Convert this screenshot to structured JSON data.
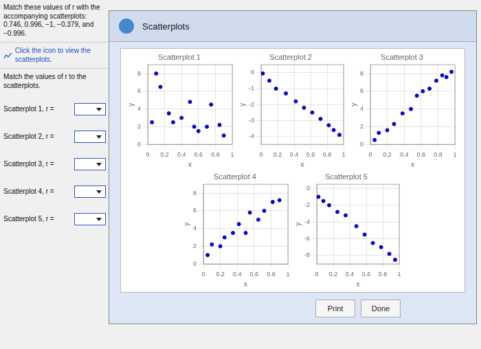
{
  "annotations": [
    "Match these values of r with the accompanying scatterplots: 0.746, 0.996, −1, −0.379, and −0.996.",
    "Click the icon to view the scatterplots.",
    "Match the values of r to the scatterplots.",
    "Scatterplot 1, r =",
    "Scatterplot 2, r =",
    "Scatterplot 3, r =",
    "Scatterplot 4, r =",
    "Scatterplot 5, r =",
    "Scatterplots",
    "Print",
    "Done"
  ],
  "chart_data": [
    {
      "type": "scatter",
      "title": "Scatterplot 1",
      "x_label": "x",
      "y_label": "y",
      "color": "#0000cc",
      "grid": true,
      "x": [
        0.05,
        0.1,
        0.15,
        0.25,
        0.3,
        0.4,
        0.5,
        0.55,
        0.6,
        0.7,
        0.75,
        0.85,
        0.9
      ],
      "values": [
        2.5,
        8.0,
        6.5,
        3.5,
        2.5,
        3.0,
        4.8,
        2.0,
        1.5,
        2.0,
        4.5,
        2.2,
        1.0
      ],
      "xlim": [
        0,
        1
      ],
      "xticks": [
        0,
        0.2,
        0.4,
        0.6,
        0.8,
        1
      ],
      "ylim": [
        0,
        9
      ],
      "yticks": [
        0,
        2,
        4,
        6,
        8
      ]
    },
    {
      "type": "scatter",
      "title": "Scatterplot 2",
      "x_label": "x",
      "y_label": "y",
      "color": "#0000cc",
      "grid": true,
      "x": [
        0.02,
        0.1,
        0.18,
        0.3,
        0.42,
        0.52,
        0.62,
        0.72,
        0.82,
        0.88,
        0.95
      ],
      "values": [
        -0.05,
        -0.5,
        -1.0,
        -1.3,
        -1.8,
        -2.2,
        -2.5,
        -2.9,
        -3.3,
        -3.6,
        -3.9
      ],
      "xlim": [
        0,
        1
      ],
      "xticks": [
        0,
        0.2,
        0.4,
        0.6,
        0.8,
        1
      ],
      "ylim": [
        -4.5,
        0.5
      ],
      "yticks": [
        0,
        -1,
        -2,
        -3,
        -4
      ]
    },
    {
      "type": "scatter",
      "title": "Scatterplot 3",
      "x_label": "x",
      "y_label": "y",
      "color": "#0000cc",
      "grid": true,
      "x": [
        0.05,
        0.1,
        0.2,
        0.28,
        0.38,
        0.48,
        0.55,
        0.62,
        0.7,
        0.78,
        0.85,
        0.9,
        0.96
      ],
      "values": [
        0.5,
        1.3,
        1.6,
        2.3,
        3.5,
        4.0,
        5.5,
        6.0,
        6.3,
        7.2,
        7.8,
        7.6,
        8.2
      ],
      "xlim": [
        0,
        1
      ],
      "xticks": [
        0,
        0.2,
        0.4,
        0.6,
        0.8,
        1
      ],
      "ylim": [
        0,
        9
      ],
      "yticks": [
        0,
        2,
        4,
        6,
        8
      ]
    },
    {
      "type": "scatter",
      "title": "Scatterplot 4",
      "x_label": "x",
      "y_label": "y",
      "color": "#0000cc",
      "grid": true,
      "x": [
        0.05,
        0.1,
        0.2,
        0.25,
        0.35,
        0.42,
        0.5,
        0.55,
        0.65,
        0.72,
        0.82,
        0.9
      ],
      "values": [
        1.0,
        2.2,
        2.0,
        3.0,
        3.5,
        4.5,
        3.5,
        5.8,
        5.0,
        6.0,
        7.0,
        7.2
      ],
      "xlim": [
        0,
        1
      ],
      "xticks": [
        0,
        0.2,
        0.4,
        0.6,
        0.8,
        1
      ],
      "ylim": [
        0,
        9
      ],
      "yticks": [
        0,
        2,
        4,
        6,
        8
      ]
    },
    {
      "type": "scatter",
      "title": "Scatterplot 5",
      "x_label": "x",
      "y_label": "y",
      "color": "#0000cc",
      "grid": true,
      "x": [
        0.02,
        0.08,
        0.15,
        0.25,
        0.35,
        0.48,
        0.58,
        0.68,
        0.78,
        0.88,
        0.95
      ],
      "values": [
        -1.0,
        -1.5,
        -2.0,
        -2.8,
        -3.2,
        -4.5,
        -5.5,
        -6.5,
        -7.0,
        -7.8,
        -8.5
      ],
      "xlim": [
        0,
        1
      ],
      "xticks": [
        0,
        0.2,
        0.4,
        0.6,
        0.8,
        1
      ],
      "ylim": [
        -9,
        0.5
      ],
      "yticks": [
        0,
        -2,
        -4,
        -6,
        -8
      ]
    }
  ]
}
